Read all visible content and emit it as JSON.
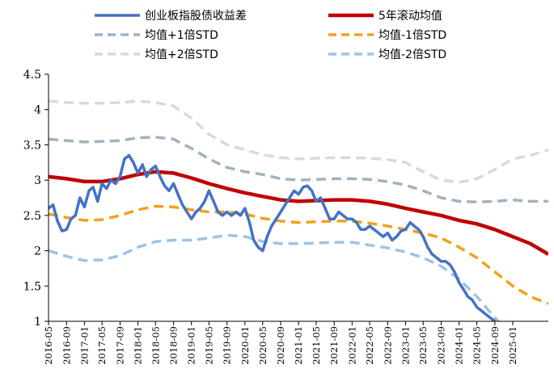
{
  "chart_data": {
    "type": "line",
    "ylim": [
      1,
      4.5
    ],
    "yticks": [
      "1",
      "1.5",
      "2",
      "2.5",
      "3",
      "3.5",
      "4",
      "4.5"
    ],
    "xticks": [
      "2016-05",
      "2016-09",
      "2017-01",
      "2017-05",
      "2017-09",
      "2018-01",
      "2018-05",
      "2018-09",
      "2019-01",
      "2019-05",
      "2019-09",
      "2020-01",
      "2020-05",
      "2020-09",
      "2021-01",
      "2021-05",
      "2021-09",
      "2022-01",
      "2022-05",
      "2022-09",
      "2023-01",
      "2023-05",
      "2023-09",
      "2024-01",
      "2024-05",
      "2024-09",
      "2025-01"
    ],
    "grid": false,
    "legend_position": "top",
    "series": [
      {
        "name": "创业板指股债收益差",
        "color": "#4472C4",
        "style": "solid",
        "points": [
          [
            "2016-05-01",
            2.6
          ],
          [
            "2016-06-01",
            2.65
          ],
          [
            "2016-07-01",
            2.42
          ],
          [
            "2016-08-01",
            2.28
          ],
          [
            "2016-09-01",
            2.3
          ],
          [
            "2016-10-01",
            2.45
          ],
          [
            "2016-11-01",
            2.5
          ],
          [
            "2016-12-01",
            2.75
          ],
          [
            "2017-01-01",
            2.62
          ],
          [
            "2017-02-01",
            2.85
          ],
          [
            "2017-03-01",
            2.9
          ],
          [
            "2017-04-01",
            2.7
          ],
          [
            "2017-05-01",
            2.95
          ],
          [
            "2017-06-01",
            2.88
          ],
          [
            "2017-07-01",
            3.0
          ],
          [
            "2017-08-01",
            2.95
          ],
          [
            "2017-09-01",
            3.05
          ],
          [
            "2017-10-01",
            3.3
          ],
          [
            "2017-11-01",
            3.35
          ],
          [
            "2017-12-01",
            3.25
          ],
          [
            "2018-01-01",
            3.1
          ],
          [
            "2018-02-01",
            3.22
          ],
          [
            "2018-03-01",
            3.05
          ],
          [
            "2018-04-01",
            3.15
          ],
          [
            "2018-05-01",
            3.2
          ],
          [
            "2018-06-01",
            3.05
          ],
          [
            "2018-07-01",
            2.92
          ],
          [
            "2018-08-01",
            2.85
          ],
          [
            "2018-09-01",
            2.95
          ],
          [
            "2018-10-01",
            2.8
          ],
          [
            "2018-11-01",
            2.65
          ],
          [
            "2018-12-01",
            2.55
          ],
          [
            "2019-01-01",
            2.45
          ],
          [
            "2019-02-01",
            2.55
          ],
          [
            "2019-03-01",
            2.6
          ],
          [
            "2019-04-01",
            2.7
          ],
          [
            "2019-05-01",
            2.85
          ],
          [
            "2019-06-01",
            2.7
          ],
          [
            "2019-07-01",
            2.55
          ],
          [
            "2019-08-01",
            2.5
          ],
          [
            "2019-09-01",
            2.55
          ],
          [
            "2019-10-01",
            2.5
          ],
          [
            "2019-11-01",
            2.55
          ],
          [
            "2019-12-01",
            2.5
          ],
          [
            "2020-01-01",
            2.6
          ],
          [
            "2020-02-01",
            2.4
          ],
          [
            "2020-03-01",
            2.15
          ],
          [
            "2020-04-01",
            2.05
          ],
          [
            "2020-05-01",
            2.0
          ],
          [
            "2020-06-01",
            2.2
          ],
          [
            "2020-07-01",
            2.35
          ],
          [
            "2020-08-01",
            2.45
          ],
          [
            "2020-09-01",
            2.55
          ],
          [
            "2020-10-01",
            2.65
          ],
          [
            "2020-11-01",
            2.75
          ],
          [
            "2020-12-01",
            2.85
          ],
          [
            "2021-01-01",
            2.8
          ],
          [
            "2021-02-01",
            2.9
          ],
          [
            "2021-03-01",
            2.92
          ],
          [
            "2021-04-01",
            2.85
          ],
          [
            "2021-05-01",
            2.7
          ],
          [
            "2021-06-01",
            2.75
          ],
          [
            "2021-07-01",
            2.6
          ],
          [
            "2021-08-01",
            2.45
          ],
          [
            "2021-09-01",
            2.45
          ],
          [
            "2021-10-01",
            2.55
          ],
          [
            "2021-11-01",
            2.5
          ],
          [
            "2021-12-01",
            2.45
          ],
          [
            "2022-01-01",
            2.45
          ],
          [
            "2022-02-01",
            2.4
          ],
          [
            "2022-03-01",
            2.3
          ],
          [
            "2022-04-01",
            2.3
          ],
          [
            "2022-05-01",
            2.35
          ],
          [
            "2022-06-01",
            2.3
          ],
          [
            "2022-07-01",
            2.25
          ],
          [
            "2022-08-01",
            2.2
          ],
          [
            "2022-09-01",
            2.25
          ],
          [
            "2022-10-01",
            2.15
          ],
          [
            "2022-11-01",
            2.2
          ],
          [
            "2022-12-01",
            2.28
          ],
          [
            "2023-01-01",
            2.3
          ],
          [
            "2023-02-01",
            2.4
          ],
          [
            "2023-03-01",
            2.35
          ],
          [
            "2023-04-01",
            2.3
          ],
          [
            "2023-05-01",
            2.2
          ],
          [
            "2023-06-01",
            2.05
          ],
          [
            "2023-07-01",
            1.95
          ],
          [
            "2023-08-01",
            1.9
          ],
          [
            "2023-09-01",
            1.85
          ],
          [
            "2023-10-01",
            1.85
          ],
          [
            "2023-11-01",
            1.8
          ],
          [
            "2023-12-01",
            1.7
          ],
          [
            "2024-01-01",
            1.55
          ],
          [
            "2024-02-01",
            1.45
          ],
          [
            "2024-03-01",
            1.35
          ],
          [
            "2024-04-01",
            1.3
          ],
          [
            "2024-05-01",
            1.2
          ],
          [
            "2024-06-01",
            1.15
          ],
          [
            "2024-07-01",
            1.1
          ],
          [
            "2024-08-01",
            1.05
          ],
          [
            "2024-09-01",
            1.0
          ]
        ]
      },
      {
        "name": "5年滚动均值",
        "color": "#C00000",
        "style": "solid",
        "points": [
          [
            "2016-05-01",
            3.05
          ],
          [
            "2016-09-01",
            3.02
          ],
          [
            "2017-01-01",
            2.98
          ],
          [
            "2017-05-01",
            2.98
          ],
          [
            "2017-09-01",
            3.02
          ],
          [
            "2018-01-01",
            3.08
          ],
          [
            "2018-05-01",
            3.12
          ],
          [
            "2018-09-01",
            3.1
          ],
          [
            "2019-01-01",
            3.03
          ],
          [
            "2019-05-01",
            2.95
          ],
          [
            "2019-09-01",
            2.88
          ],
          [
            "2020-01-01",
            2.82
          ],
          [
            "2020-05-01",
            2.77
          ],
          [
            "2020-09-01",
            2.72
          ],
          [
            "2021-01-01",
            2.7
          ],
          [
            "2021-05-01",
            2.71
          ],
          [
            "2021-09-01",
            2.72
          ],
          [
            "2022-01-01",
            2.72
          ],
          [
            "2022-05-01",
            2.7
          ],
          [
            "2022-09-01",
            2.66
          ],
          [
            "2023-01-01",
            2.6
          ],
          [
            "2023-05-01",
            2.55
          ],
          [
            "2023-09-01",
            2.5
          ],
          [
            "2024-01-01",
            2.43
          ],
          [
            "2024-05-01",
            2.38
          ],
          [
            "2024-09-01",
            2.3
          ],
          [
            "2025-01-01",
            2.2
          ],
          [
            "2025-05-01",
            2.1
          ],
          [
            "2025-09-01",
            1.95
          ]
        ]
      },
      {
        "name": "均值+1倍STD",
        "color": "#9FB3C3",
        "style": "dashed",
        "points": [
          [
            "2016-05-01",
            3.58
          ],
          [
            "2016-09-01",
            3.56
          ],
          [
            "2017-01-01",
            3.54
          ],
          [
            "2017-05-01",
            3.55
          ],
          [
            "2017-09-01",
            3.56
          ],
          [
            "2018-01-01",
            3.6
          ],
          [
            "2018-05-01",
            3.61
          ],
          [
            "2018-09-01",
            3.58
          ],
          [
            "2019-01-01",
            3.45
          ],
          [
            "2019-05-01",
            3.3
          ],
          [
            "2019-09-01",
            3.18
          ],
          [
            "2020-01-01",
            3.12
          ],
          [
            "2020-05-01",
            3.08
          ],
          [
            "2020-09-01",
            3.02
          ],
          [
            "2021-01-01",
            3.0
          ],
          [
            "2021-05-01",
            3.01
          ],
          [
            "2021-09-01",
            3.02
          ],
          [
            "2022-01-01",
            3.02
          ],
          [
            "2022-05-01",
            3.01
          ],
          [
            "2022-09-01",
            2.98
          ],
          [
            "2023-01-01",
            2.93
          ],
          [
            "2023-05-01",
            2.85
          ],
          [
            "2023-09-01",
            2.75
          ],
          [
            "2024-01-01",
            2.7
          ],
          [
            "2024-05-01",
            2.69
          ],
          [
            "2024-09-01",
            2.7
          ],
          [
            "2025-01-01",
            2.72
          ],
          [
            "2025-05-01",
            2.7
          ],
          [
            "2025-09-01",
            2.7
          ]
        ]
      },
      {
        "name": "均值-1倍STD",
        "color": "#F4A01C",
        "style": "dashed",
        "points": [
          [
            "2016-05-01",
            2.52
          ],
          [
            "2016-09-01",
            2.47
          ],
          [
            "2017-01-01",
            2.43
          ],
          [
            "2017-05-01",
            2.44
          ],
          [
            "2017-09-01",
            2.5
          ],
          [
            "2018-01-01",
            2.58
          ],
          [
            "2018-05-01",
            2.63
          ],
          [
            "2018-09-01",
            2.62
          ],
          [
            "2019-01-01",
            2.58
          ],
          [
            "2019-05-01",
            2.55
          ],
          [
            "2019-09-01",
            2.55
          ],
          [
            "2020-01-01",
            2.52
          ],
          [
            "2020-05-01",
            2.46
          ],
          [
            "2020-09-01",
            2.42
          ],
          [
            "2021-01-01",
            2.4
          ],
          [
            "2021-05-01",
            2.41
          ],
          [
            "2021-09-01",
            2.42
          ],
          [
            "2022-01-01",
            2.42
          ],
          [
            "2022-05-01",
            2.39
          ],
          [
            "2022-09-01",
            2.35
          ],
          [
            "2023-01-01",
            2.3
          ],
          [
            "2023-05-01",
            2.25
          ],
          [
            "2023-09-01",
            2.18
          ],
          [
            "2024-01-01",
            2.05
          ],
          [
            "2024-05-01",
            1.9
          ],
          [
            "2024-09-01",
            1.7
          ],
          [
            "2025-01-01",
            1.5
          ],
          [
            "2025-05-01",
            1.35
          ],
          [
            "2025-09-01",
            1.25
          ]
        ]
      },
      {
        "name": "均值+2倍STD",
        "color": "#D9D9D9",
        "style": "dashed",
        "points": [
          [
            "2016-05-01",
            4.12
          ],
          [
            "2016-09-01",
            4.1
          ],
          [
            "2017-01-01",
            4.09
          ],
          [
            "2017-05-01",
            4.09
          ],
          [
            "2017-09-01",
            4.1
          ],
          [
            "2018-01-01",
            4.12
          ],
          [
            "2018-05-01",
            4.1
          ],
          [
            "2018-09-01",
            4.05
          ],
          [
            "2019-01-01",
            3.88
          ],
          [
            "2019-05-01",
            3.65
          ],
          [
            "2019-09-01",
            3.5
          ],
          [
            "2020-01-01",
            3.43
          ],
          [
            "2020-05-01",
            3.36
          ],
          [
            "2020-09-01",
            3.32
          ],
          [
            "2021-01-01",
            3.3
          ],
          [
            "2021-05-01",
            3.31
          ],
          [
            "2021-09-01",
            3.32
          ],
          [
            "2022-01-01",
            3.32
          ],
          [
            "2022-05-01",
            3.31
          ],
          [
            "2022-09-01",
            3.29
          ],
          [
            "2023-01-01",
            3.25
          ],
          [
            "2023-05-01",
            3.12
          ],
          [
            "2023-09-01",
            3.0
          ],
          [
            "2024-01-01",
            2.97
          ],
          [
            "2024-05-01",
            3.02
          ],
          [
            "2024-09-01",
            3.15
          ],
          [
            "2025-01-01",
            3.3
          ],
          [
            "2025-05-01",
            3.35
          ],
          [
            "2025-09-01",
            3.43
          ]
        ]
      },
      {
        "name": "均值-2倍STD",
        "color": "#9DC3E6",
        "style": "dashed",
        "points": [
          [
            "2016-05-01",
            2.0
          ],
          [
            "2016-09-01",
            1.92
          ],
          [
            "2017-01-01",
            1.86
          ],
          [
            "2017-05-01",
            1.87
          ],
          [
            "2017-09-01",
            1.93
          ],
          [
            "2018-01-01",
            2.05
          ],
          [
            "2018-05-01",
            2.13
          ],
          [
            "2018-09-01",
            2.15
          ],
          [
            "2019-01-01",
            2.15
          ],
          [
            "2019-05-01",
            2.18
          ],
          [
            "2019-09-01",
            2.22
          ],
          [
            "2020-01-01",
            2.2
          ],
          [
            "2020-05-01",
            2.13
          ],
          [
            "2020-09-01",
            2.1
          ],
          [
            "2021-01-01",
            2.1
          ],
          [
            "2021-05-01",
            2.11
          ],
          [
            "2021-09-01",
            2.12
          ],
          [
            "2022-01-01",
            2.12
          ],
          [
            "2022-05-01",
            2.08
          ],
          [
            "2022-09-01",
            2.04
          ],
          [
            "2023-01-01",
            1.98
          ],
          [
            "2023-05-01",
            1.9
          ],
          [
            "2023-09-01",
            1.78
          ],
          [
            "2024-01-01",
            1.6
          ],
          [
            "2024-05-01",
            1.35
          ],
          [
            "2024-09-01",
            1.05
          ],
          [
            "2025-01-01",
            0.8
          ]
        ]
      }
    ]
  }
}
